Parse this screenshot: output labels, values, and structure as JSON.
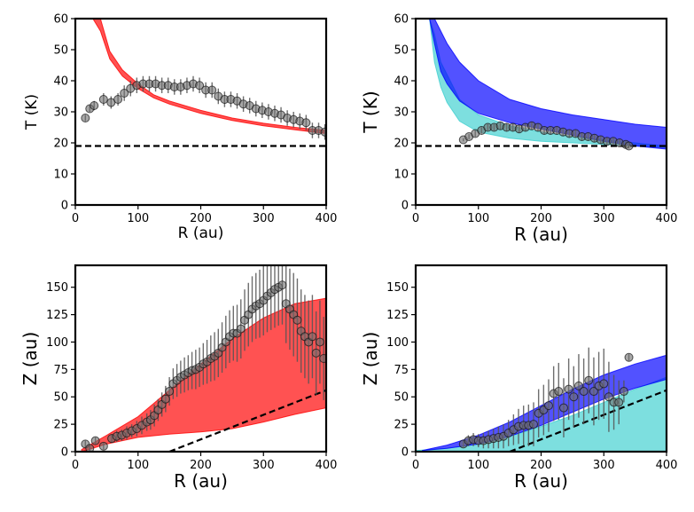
{
  "chart_data": [
    {
      "id": "top-left",
      "type": "scatter",
      "title": "",
      "xlabel": "R (au)",
      "ylabel": "T (K)",
      "xlim": [
        0,
        400
      ],
      "ylim": [
        0,
        60
      ],
      "xticks": [
        0,
        100,
        200,
        300,
        400
      ],
      "yticks": [
        0,
        10,
        20,
        30,
        40,
        50,
        60
      ],
      "hline": 19,
      "bands": [
        {
          "name": "model-red",
          "color": "#ff0000",
          "x": [
            28,
            40,
            55,
            75,
            100,
            125,
            150,
            200,
            250,
            300,
            350,
            400
          ],
          "lower": [
            60,
            56,
            47,
            41.5,
            37.5,
            34.5,
            32.5,
            29.5,
            27.2,
            25.5,
            24.2,
            23
          ],
          "upper": [
            60,
            60,
            49.5,
            43.5,
            39,
            35.5,
            33.5,
            30.5,
            28,
            26.3,
            25,
            24
          ]
        }
      ],
      "points": {
        "name": "observed",
        "x": [
          16,
          23,
          30,
          45,
          57,
          68,
          78,
          88,
          98,
          108,
          118,
          128,
          138,
          148,
          158,
          168,
          178,
          188,
          198,
          208,
          218,
          228,
          238,
          248,
          258,
          268,
          278,
          288,
          298,
          308,
          318,
          328,
          338,
          348,
          358,
          368,
          378,
          388,
          398
        ],
        "y": [
          28,
          31,
          32,
          34,
          33,
          34,
          36,
          37.5,
          38.5,
          39,
          39,
          39,
          38.5,
          38.5,
          38,
          38,
          38.5,
          39,
          38.5,
          37,
          37,
          35,
          34,
          34,
          33.5,
          32.5,
          32,
          31,
          30.5,
          30,
          29.5,
          29,
          28,
          27.5,
          27,
          26.5,
          24,
          24,
          23.5
        ],
        "err": [
          1,
          1,
          1.5,
          2,
          2,
          2,
          2.5,
          2.5,
          2.5,
          2.5,
          2.5,
          2.5,
          2.5,
          2.5,
          2.5,
          2.5,
          2.5,
          2.5,
          2.5,
          2.5,
          2.5,
          2.5,
          2.5,
          2.5,
          2.5,
          2.5,
          2.5,
          2.5,
          2.5,
          2.5,
          2.5,
          2.5,
          2.5,
          2.5,
          2.5,
          2.5,
          2.5,
          2.5,
          2.5
        ]
      }
    },
    {
      "id": "top-right",
      "type": "scatter",
      "title": "",
      "xlabel": "R (au)",
      "ylabel": "T (K)",
      "xlim": [
        0,
        400
      ],
      "ylim": [
        0,
        60
      ],
      "xticks": [
        0,
        100,
        200,
        300,
        400
      ],
      "yticks": [
        0,
        10,
        20,
        30,
        40,
        50,
        60
      ],
      "hline": 19,
      "bands": [
        {
          "name": "model-cyan",
          "color": "#40d0d0",
          "x": [
            22,
            30,
            40,
            50,
            70,
            100,
            150,
            200,
            250,
            300,
            350,
            400
          ],
          "lower": [
            60,
            46,
            38,
            33,
            27,
            23.5,
            21.5,
            20.5,
            20,
            19.5,
            19,
            18.5
          ],
          "upper": [
            60,
            55,
            46,
            42,
            34,
            29,
            25.5,
            23.5,
            22,
            21,
            20,
            19
          ]
        },
        {
          "name": "model-blue",
          "color": "#0000ff",
          "x": [
            22,
            30,
            40,
            50,
            70,
            100,
            150,
            200,
            250,
            300,
            350,
            400
          ],
          "lower": [
            60,
            52,
            43,
            39,
            33.5,
            29.5,
            26.5,
            24.5,
            22.5,
            20.5,
            19,
            18
          ],
          "upper": [
            60,
            60,
            56,
            52,
            46,
            40,
            34,
            31,
            29,
            27.5,
            26,
            25
          ]
        }
      ],
      "points": {
        "name": "observed",
        "x": [
          76,
          85,
          95,
          105,
          115,
          125,
          135,
          145,
          155,
          165,
          175,
          185,
          195,
          205,
          215,
          225,
          235,
          245,
          255,
          265,
          275,
          285,
          295,
          305,
          315,
          325,
          335,
          340
        ],
        "y": [
          21,
          22,
          23,
          24,
          25,
          25,
          25.5,
          25,
          25,
          24.5,
          25,
          25.5,
          25,
          24,
          24,
          24,
          23.5,
          23,
          23,
          22,
          22,
          21.5,
          21,
          20.5,
          20.5,
          20,
          19.5,
          19
        ],
        "err": [
          0.5,
          0.8,
          1,
          1,
          1,
          1,
          1.2,
          1.2,
          1.2,
          1.2,
          1.2,
          1.2,
          1.2,
          1.2,
          1.2,
          1.2,
          1.2,
          1.2,
          1.2,
          1.2,
          1.2,
          1.2,
          1.2,
          1.2,
          1.2,
          1.2,
          1,
          0.8
        ]
      }
    },
    {
      "id": "bottom-left",
      "type": "scatter",
      "title": "",
      "xlabel": "R (au)",
      "ylabel": "Z (au)",
      "xlim": [
        0,
        400
      ],
      "ylim": [
        0,
        170
      ],
      "xticks": [
        0,
        100,
        200,
        300,
        400
      ],
      "yticks": [
        0,
        25,
        50,
        75,
        100,
        125,
        150
      ],
      "dashed_line": {
        "x": [
          150,
          400
        ],
        "y": [
          0,
          56
        ]
      },
      "bands": [
        {
          "name": "model-red",
          "color": "#ff0000",
          "x": [
            10,
            50,
            100,
            150,
            200,
            250,
            300,
            350,
            400
          ],
          "lower": [
            0,
            7,
            13,
            16,
            18,
            21,
            27,
            34,
            40
          ],
          "upper": [
            2,
            15,
            32,
            56,
            80,
            103,
            122,
            135,
            140
          ]
        }
      ],
      "points": {
        "name": "observed",
        "x": [
          16,
          23,
          32,
          45,
          58,
          66,
          74,
          82,
          90,
          98,
          106,
          114,
          120,
          126,
          132,
          138,
          144,
          150,
          156,
          162,
          168,
          174,
          180,
          186,
          192,
          198,
          204,
          210,
          216,
          222,
          228,
          234,
          240,
          246,
          252,
          258,
          264,
          270,
          276,
          282,
          288,
          294,
          300,
          306,
          312,
          318,
          324,
          330,
          336,
          342,
          348,
          354,
          360,
          366,
          372,
          378,
          384,
          390,
          396
        ],
        "y": [
          7,
          3,
          10,
          5,
          12,
          14,
          15,
          17,
          19,
          21,
          24,
          27,
          29,
          33,
          38,
          43,
          48,
          55,
          62,
          65,
          68,
          70,
          72,
          74,
          75,
          77,
          80,
          82,
          85,
          87,
          90,
          95,
          100,
          105,
          108,
          108,
          112,
          120,
          125,
          130,
          133,
          135,
          138,
          142,
          145,
          148,
          150,
          152,
          135,
          130,
          125,
          120,
          110,
          105,
          100,
          105,
          90,
          100,
          85
        ],
        "err": [
          3,
          3,
          3,
          3,
          4,
          5,
          5,
          6,
          6,
          7,
          8,
          8,
          9,
          10,
          10,
          11,
          12,
          13,
          14,
          15,
          15,
          16,
          16,
          17,
          18,
          18,
          19,
          20,
          21,
          22,
          22,
          23,
          24,
          24,
          25,
          26,
          27,
          28,
          29,
          30,
          30,
          31,
          32,
          33,
          34,
          35,
          35,
          36,
          36,
          37,
          38,
          38,
          38,
          38,
          38,
          38,
          38,
          38,
          38
        ]
      }
    },
    {
      "id": "bottom-right",
      "type": "scatter",
      "title": "",
      "xlabel": "R (au)",
      "ylabel": "Z (au)",
      "xlim": [
        0,
        400
      ],
      "ylim": [
        0,
        170
      ],
      "xticks": [
        0,
        100,
        200,
        300,
        400
      ],
      "yticks": [
        0,
        25,
        50,
        75,
        100,
        125,
        150
      ],
      "dashed_line": {
        "x": [
          150,
          400
        ],
        "y": [
          0,
          56
        ]
      },
      "bands": [
        {
          "name": "model-cyan",
          "color": "#40d0d0",
          "x": [
            0,
            50,
            100,
            150,
            200,
            250,
            300,
            350,
            400
          ],
          "lower": [
            0,
            0,
            0,
            0,
            0,
            0,
            0,
            0,
            0
          ],
          "upper": [
            1,
            3,
            7,
            14,
            23,
            33,
            45,
            57,
            68
          ]
        },
        {
          "name": "model-blue",
          "color": "#0000ff",
          "x": [
            10,
            50,
            100,
            150,
            200,
            250,
            300,
            350,
            400
          ],
          "lower": [
            1,
            3,
            7,
            14,
            24,
            36,
            48,
            58,
            66
          ],
          "upper": [
            1,
            6,
            15,
            27,
            42,
            57,
            70,
            80,
            88
          ]
        }
      ],
      "points": {
        "name": "observed",
        "x": [
          76,
          84,
          92,
          100,
          108,
          116,
          124,
          132,
          140,
          148,
          156,
          164,
          172,
          180,
          188,
          196,
          204,
          212,
          220,
          228,
          236,
          244,
          252,
          260,
          268,
          276,
          284,
          292,
          300,
          308,
          316,
          324,
          332,
          340
        ],
        "y": [
          7,
          10,
          11,
          10,
          10,
          11,
          12,
          13,
          14,
          17,
          20,
          23,
          24,
          24,
          25,
          35,
          38,
          42,
          53,
          55,
          40,
          57,
          50,
          60,
          55,
          65,
          55,
          60,
          62,
          50,
          45,
          45,
          55,
          86
        ],
        "err": [
          3,
          5,
          6,
          6,
          7,
          8,
          9,
          10,
          11,
          12,
          14,
          16,
          18,
          19,
          20,
          22,
          23,
          24,
          25,
          26,
          27,
          28,
          28,
          29,
          30,
          30,
          31,
          31,
          32,
          32,
          25,
          20,
          10,
          3
        ]
      }
    }
  ]
}
